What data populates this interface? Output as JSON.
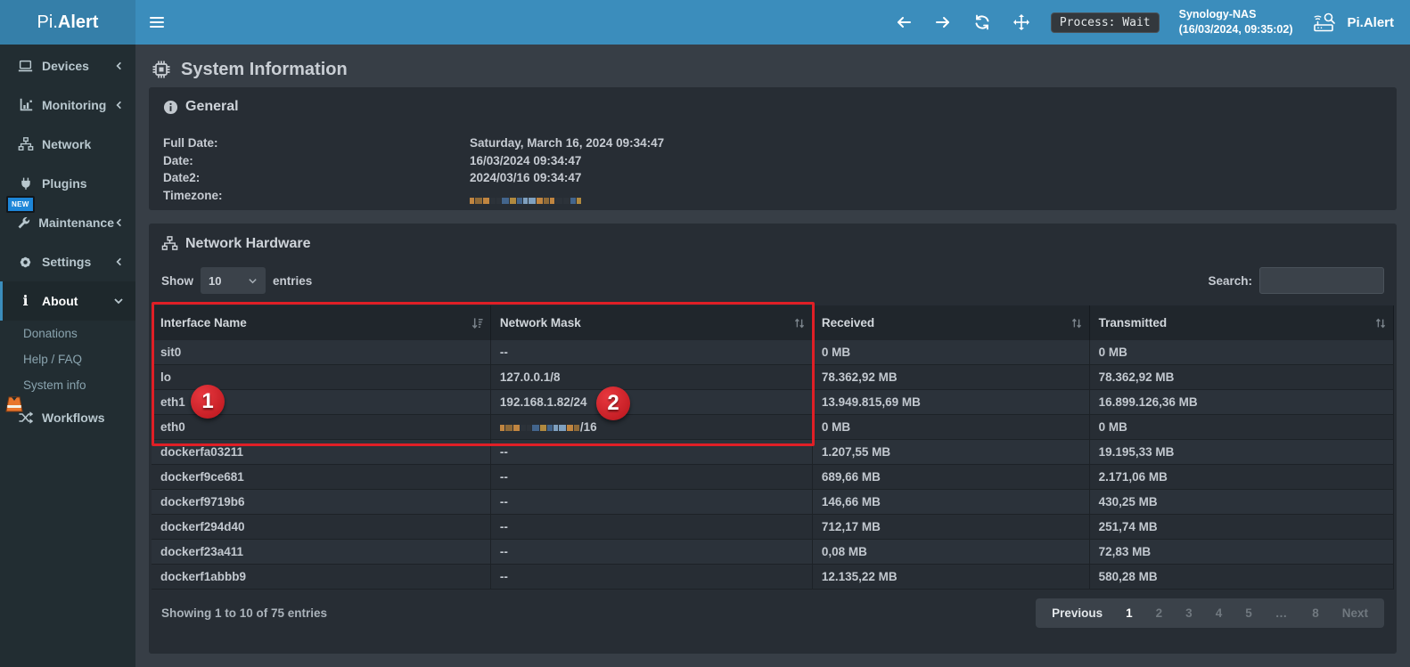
{
  "header": {
    "logo_prefix": "Pi.",
    "logo_bold": "Alert",
    "process_badge": "Process: Wait",
    "device_name": "Synology-NAS",
    "device_timestamp": "(16/03/2024, 09:35:02)",
    "brand": "Pi.Alert"
  },
  "sidebar": {
    "items": [
      {
        "label": "Devices"
      },
      {
        "label": "Monitoring"
      },
      {
        "label": "Network"
      },
      {
        "label": "Plugins"
      },
      {
        "label": "Maintenance",
        "badge": "NEW"
      },
      {
        "label": "Settings"
      },
      {
        "label": "About"
      }
    ],
    "about_submenu": [
      {
        "label": "Donations"
      },
      {
        "label": "Help / FAQ"
      },
      {
        "label": "System info"
      }
    ],
    "workflows_label": "Workflows"
  },
  "page": {
    "title": "System Information"
  },
  "general": {
    "title": "General",
    "full_date_label": "Full Date:",
    "full_date": "Saturday, March 16, 2024 09:34:47",
    "date_label": "Date:",
    "date": "16/03/2024 09:34:47",
    "date2_label": "Date2:",
    "date2": "2024/03/16 09:34:47",
    "timezone_label": "Timezone:",
    "timezone_redacted": true
  },
  "table": {
    "title": "Network Hardware",
    "show_label": "Show",
    "page_length": "10",
    "entries_label": "entries",
    "search_label": "Search:",
    "search_value": "",
    "columns": [
      "Interface Name",
      "Network Mask",
      "Received",
      "Transmitted"
    ],
    "rows": [
      {
        "iface": "sit0",
        "mask": "--",
        "received": "0 MB",
        "transmitted": "0 MB"
      },
      {
        "iface": "lo",
        "mask": "127.0.0.1/8",
        "received": "78.362,92 MB",
        "transmitted": "78.362,92 MB"
      },
      {
        "iface": "eth1",
        "mask": "192.168.1.82/24",
        "received": "13.949.815,69 MB",
        "transmitted": "16.899.126,36 MB"
      },
      {
        "iface": "eth0",
        "mask": "/16",
        "mask_redacted": true,
        "received": "0 MB",
        "transmitted": "0 MB"
      },
      {
        "iface": "dockerfa03211",
        "mask": "--",
        "received": "1.207,55 MB",
        "transmitted": "19.195,33 MB"
      },
      {
        "iface": "dockerf9ce681",
        "mask": "--",
        "received": "689,66 MB",
        "transmitted": "2.171,06 MB"
      },
      {
        "iface": "dockerf9719b6",
        "mask": "--",
        "received": "146,66 MB",
        "transmitted": "430,25 MB"
      },
      {
        "iface": "dockerf294d40",
        "mask": "--",
        "received": "712,17 MB",
        "transmitted": "251,74 MB"
      },
      {
        "iface": "dockerf23a411",
        "mask": "--",
        "received": "0,08 MB",
        "transmitted": "72,83 MB"
      },
      {
        "iface": "dockerf1abbb9",
        "mask": "--",
        "received": "12.135,22 MB",
        "transmitted": "580,28 MB"
      }
    ],
    "info": "Showing 1 to 10 of 75 entries",
    "pagination": [
      {
        "label": "Previous",
        "state": "enabled"
      },
      {
        "label": "1",
        "state": "current"
      },
      {
        "label": "2",
        "state": "muted"
      },
      {
        "label": "3",
        "state": "muted"
      },
      {
        "label": "4",
        "state": "muted"
      },
      {
        "label": "5",
        "state": "muted"
      },
      {
        "label": "…",
        "state": "ellipsis"
      },
      {
        "label": "8",
        "state": "muted"
      },
      {
        "label": "Next",
        "state": "muted"
      }
    ]
  },
  "annotations": {
    "marker_1": "1",
    "marker_2": "2",
    "box_color": "#e01f26"
  },
  "colors": {
    "header_blue": "#3b8dbc",
    "logo_blue": "#357fa9",
    "sidebar_bg": "#222d32",
    "content_bg": "#373e46",
    "panel_bg": "#272d34",
    "table_header_bg": "#20262c",
    "accent_red": "#e01f26",
    "redact_palette": [
      "#c08540",
      "#5d80a7",
      "#d9d9d3",
      "#2c3239",
      "#8f6a38",
      "#43658c",
      "#cfd3d6",
      "#262b31",
      "#7fa0bf",
      "#b0893f"
    ]
  }
}
